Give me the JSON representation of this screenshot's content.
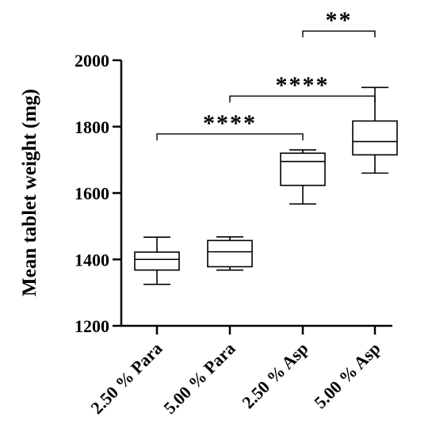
{
  "chart_data": {
    "type": "box",
    "ylabel": "Mean tablet weight (mg)",
    "xlabel": "",
    "ylim": [
      1200,
      2000
    ],
    "yticks": [
      1200,
      1400,
      1600,
      1800,
      2000
    ],
    "ytick_labels": [
      "1200",
      "1400",
      "1600",
      "1800",
      "2000"
    ],
    "categories": [
      "2.50 % Para",
      "5.00 % Para",
      "2.50 % Asp",
      "5.00 % Asp"
    ],
    "boxes": [
      {
        "min": 1325,
        "q1": 1368,
        "median": 1400,
        "q3": 1422,
        "max": 1467
      },
      {
        "min": 1368,
        "q1": 1378,
        "median": 1423,
        "q3": 1457,
        "max": 1468
      },
      {
        "min": 1567,
        "q1": 1623,
        "median": 1695,
        "q3": 1720,
        "max": 1730
      },
      {
        "min": 1660,
        "q1": 1715,
        "median": 1755,
        "q3": 1817,
        "max": 1918
      }
    ],
    "significance": [
      {
        "from": 0,
        "to": 2,
        "y": 1778,
        "label": "****"
      },
      {
        "from": 1,
        "to": 3,
        "y": 1892,
        "label": "****"
      },
      {
        "from": 2,
        "to": 3,
        "y": 2088,
        "label": "**"
      }
    ],
    "grid": false,
    "legend": "none"
  }
}
